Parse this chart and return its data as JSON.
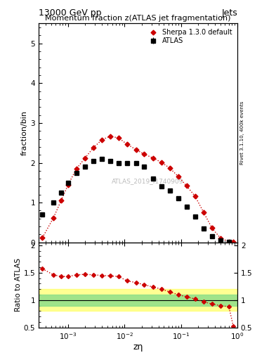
{
  "title_top": "13000 GeV pp",
  "title_right": "Jets",
  "main_title": "Momentum fraction z(ATLAS jet fragmentation)",
  "xlabel": "zη",
  "ylabel_main": "fraction/bin",
  "ylabel_ratio": "Ratio to ATLAS",
  "right_label_main": "Rivet 3.1.10, 400k events",
  "watermark": "ATLAS_2019_I1740909",
  "ylim_main": [
    0,
    5.5
  ],
  "ylim_ratio": [
    0.5,
    2.05
  ],
  "xlim": [
    0.0003,
    1.0
  ],
  "atlas_x": [
    0.00035,
    0.00055,
    0.00075,
    0.001,
    0.0014,
    0.002,
    0.0028,
    0.004,
    0.0056,
    0.0079,
    0.011,
    0.016,
    0.022,
    0.032,
    0.045,
    0.063,
    0.089,
    0.126,
    0.178,
    0.251,
    0.355,
    0.5,
    0.707
  ],
  "atlas_y": [
    0.7,
    1.0,
    1.25,
    1.5,
    1.75,
    1.9,
    2.05,
    2.1,
    2.05,
    2.0,
    2.0,
    2.0,
    1.9,
    1.6,
    1.4,
    1.3,
    1.1,
    0.9,
    0.65,
    0.35,
    0.15,
    0.05,
    0.02
  ],
  "atlas_ey": [
    0.05,
    0.05,
    0.05,
    0.05,
    0.05,
    0.05,
    0.05,
    0.05,
    0.05,
    0.05,
    0.05,
    0.05,
    0.05,
    0.05,
    0.05,
    0.05,
    0.05,
    0.05,
    0.05,
    0.04,
    0.03,
    0.01,
    0.005
  ],
  "sherpa_x": [
    0.00035,
    0.00055,
    0.00075,
    0.001,
    0.0014,
    0.002,
    0.0028,
    0.004,
    0.0056,
    0.0079,
    0.011,
    0.016,
    0.022,
    0.032,
    0.045,
    0.063,
    0.089,
    0.126,
    0.178,
    0.251,
    0.355,
    0.5,
    0.707,
    0.85
  ],
  "sherpa_y": [
    0.12,
    0.62,
    1.05,
    1.45,
    1.85,
    2.12,
    2.38,
    2.58,
    2.67,
    2.62,
    2.47,
    2.33,
    2.22,
    2.12,
    2.01,
    1.87,
    1.66,
    1.42,
    1.16,
    0.76,
    0.36,
    0.11,
    0.022,
    0.006
  ],
  "ratio_sherpa_x": [
    0.00035,
    0.00055,
    0.00075,
    0.001,
    0.0014,
    0.002,
    0.0028,
    0.004,
    0.0056,
    0.0079,
    0.011,
    0.016,
    0.022,
    0.032,
    0.045,
    0.063,
    0.089,
    0.126,
    0.178,
    0.251,
    0.355,
    0.5,
    0.707,
    0.85
  ],
  "ratio_sherpa_y": [
    1.57,
    1.46,
    1.43,
    1.43,
    1.46,
    1.47,
    1.46,
    1.45,
    1.44,
    1.43,
    1.35,
    1.32,
    1.28,
    1.24,
    1.2,
    1.15,
    1.1,
    1.06,
    1.02,
    0.97,
    0.93,
    0.9,
    0.88,
    0.52
  ],
  "band_yellow_lo": 0.8,
  "band_yellow_hi": 1.2,
  "band_green_lo": 0.9,
  "band_green_hi": 1.1,
  "atlas_color": "#000000",
  "sherpa_color": "#cc0000",
  "atlas_marker": "s",
  "sherpa_marker": "D",
  "atlas_markersize": 4,
  "sherpa_markersize": 3.5
}
